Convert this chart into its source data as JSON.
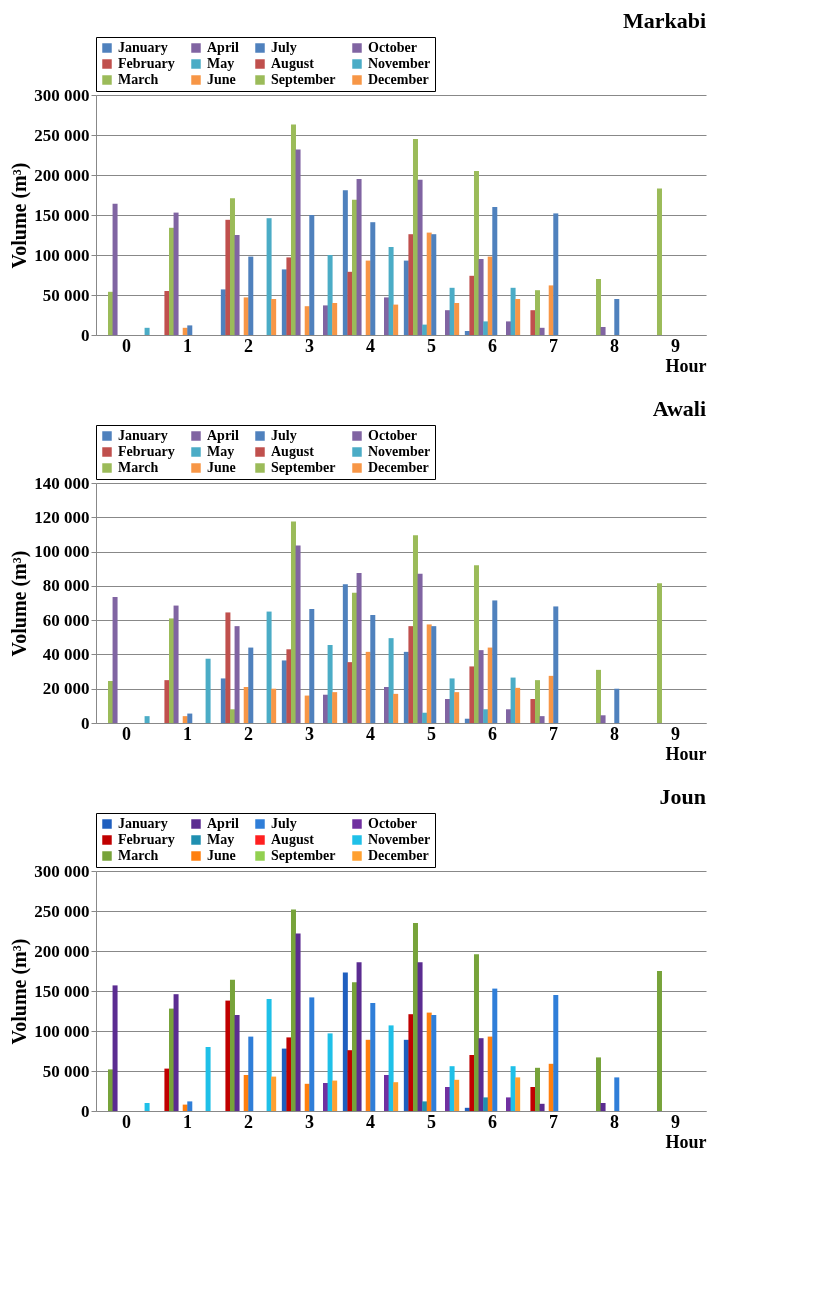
{
  "chart_data": [
    {
      "type": "bar",
      "title": "Markabi",
      "xlabel": "Hour",
      "ylabel": "Volume (m³)",
      "legend": "top",
      "grid": "y",
      "categories": [
        "0",
        "1",
        "2",
        "3",
        "4",
        "5",
        "6",
        "7",
        "8",
        "9"
      ],
      "ylim": [
        0,
        300000
      ],
      "yticks": [
        {
          "value": 0,
          "label": "0"
        },
        {
          "value": 50000,
          "label": "50 000"
        },
        {
          "value": 100000,
          "label": "100 000"
        },
        {
          "value": 150000,
          "label": "150 000"
        },
        {
          "value": 200000,
          "label": "200 000"
        },
        {
          "value": 250000,
          "label": "250 000"
        },
        {
          "value": 300000,
          "label": "300 000"
        }
      ],
      "series": [
        {
          "name": "January",
          "color": "#4f81bd",
          "values": [
            null,
            null,
            57000,
            82000,
            181000,
            93000,
            5000,
            null,
            null,
            null
          ]
        },
        {
          "name": "February",
          "color": "#c0504d",
          "values": [
            null,
            55000,
            144000,
            97000,
            79000,
            126000,
            74000,
            31000,
            null,
            null
          ]
        },
        {
          "name": "March",
          "color": "#9bbb59",
          "values": [
            54000,
            134000,
            171000,
            263000,
            169000,
            245000,
            205000,
            56000,
            70000,
            183000
          ]
        },
        {
          "name": "April",
          "color": "#8064a2",
          "values": [
            164000,
            153000,
            125000,
            232000,
            195000,
            194000,
            95000,
            9000,
            10000,
            null
          ]
        },
        {
          "name": "May",
          "color": "#4bacc6",
          "values": [
            null,
            null,
            null,
            null,
            null,
            13000,
            17000,
            null,
            null,
            null
          ]
        },
        {
          "name": "June",
          "color": "#f79646",
          "values": [
            null,
            9000,
            47000,
            36000,
            93000,
            128000,
            98000,
            62000,
            null,
            null
          ]
        },
        {
          "name": "July",
          "color": "#4f81bd",
          "values": [
            null,
            12000,
            98000,
            150000,
            141000,
            126000,
            160000,
            152000,
            45000,
            null
          ]
        },
        {
          "name": "August",
          "color": "#c0504d",
          "values": [
            null,
            null,
            null,
            null,
            null,
            null,
            null,
            null,
            null,
            null
          ]
        },
        {
          "name": "September",
          "color": "#9bbb59",
          "values": [
            null,
            null,
            null,
            null,
            null,
            null,
            null,
            null,
            null,
            null
          ]
        },
        {
          "name": "October",
          "color": "#8064a2",
          "values": [
            null,
            null,
            null,
            37000,
            47000,
            31000,
            17000,
            null,
            null,
            null
          ]
        },
        {
          "name": "November",
          "color": "#4bacc6",
          "values": [
            9000,
            null,
            146000,
            100000,
            110000,
            59000,
            59000,
            null,
            null,
            null
          ]
        },
        {
          "name": "December",
          "color": "#f79646",
          "values": [
            null,
            null,
            45000,
            40000,
            38000,
            40000,
            45000,
            null,
            null,
            null
          ]
        }
      ]
    },
    {
      "type": "bar",
      "title": "Awali",
      "xlabel": "Hour",
      "ylabel": "Volume (m³)",
      "legend": "top",
      "grid": "y",
      "categories": [
        "0",
        "1",
        "2",
        "3",
        "4",
        "5",
        "6",
        "7",
        "8",
        "9"
      ],
      "ylim": [
        0,
        140000
      ],
      "yticks": [
        {
          "value": 0,
          "label": "0"
        },
        {
          "value": 20000,
          "label": "20 000"
        },
        {
          "value": 40000,
          "label": "40 000"
        },
        {
          "value": 60000,
          "label": "60 000"
        },
        {
          "value": 80000,
          "label": "80 000"
        },
        {
          "value": 100000,
          "label": "100 000"
        },
        {
          "value": 120000,
          "label": "120 000"
        },
        {
          "value": 140000,
          "label": "140 000"
        }
      ],
      "series": [
        {
          "name": "January",
          "color": "#4f81bd",
          "values": [
            null,
            null,
            26000,
            36500,
            81000,
            41500,
            2500,
            null,
            null,
            null
          ]
        },
        {
          "name": "February",
          "color": "#c0504d",
          "values": [
            null,
            25000,
            64500,
            43000,
            35500,
            56500,
            33000,
            14000,
            null,
            null
          ]
        },
        {
          "name": "March",
          "color": "#9bbb59",
          "values": [
            24500,
            61000,
            8000,
            117500,
            76000,
            109500,
            92000,
            25000,
            31000,
            81500
          ]
        },
        {
          "name": "April",
          "color": "#8064a2",
          "values": [
            73500,
            68500,
            56500,
            103500,
            87500,
            87000,
            42500,
            4000,
            4500,
            null
          ]
        },
        {
          "name": "May",
          "color": "#4bacc6",
          "values": [
            null,
            null,
            null,
            null,
            null,
            6000,
            8000,
            null,
            null,
            null
          ]
        },
        {
          "name": "June",
          "color": "#f79646",
          "values": [
            null,
            4000,
            21000,
            16000,
            41500,
            57500,
            44000,
            27500,
            null,
            null
          ]
        },
        {
          "name": "July",
          "color": "#4f81bd",
          "values": [
            null,
            5500,
            44000,
            66500,
            63000,
            56500,
            71500,
            68000,
            20000,
            null
          ]
        },
        {
          "name": "August",
          "color": "#c0504d",
          "values": [
            null,
            null,
            null,
            null,
            null,
            null,
            null,
            null,
            null,
            null
          ]
        },
        {
          "name": "September",
          "color": "#9bbb59",
          "values": [
            null,
            null,
            null,
            null,
            null,
            null,
            null,
            null,
            null,
            null
          ]
        },
        {
          "name": "October",
          "color": "#8064a2",
          "values": [
            null,
            null,
            null,
            16500,
            21000,
            14000,
            8000,
            null,
            null,
            null
          ]
        },
        {
          "name": "November",
          "color": "#4bacc6",
          "values": [
            4000,
            37500,
            65000,
            45500,
            49500,
            26000,
            26500,
            null,
            null,
            null
          ]
        },
        {
          "name": "December",
          "color": "#f79646",
          "values": [
            null,
            null,
            20000,
            18000,
            17000,
            18000,
            20500,
            null,
            null,
            null
          ]
        }
      ]
    },
    {
      "type": "bar",
      "title": "Joun",
      "xlabel": "Hour",
      "ylabel": "Volume (m³)",
      "legend": "top",
      "grid": "y",
      "categories": [
        "0",
        "1",
        "2",
        "3",
        "4",
        "5",
        "6",
        "7",
        "8",
        "9"
      ],
      "ylim": [
        0,
        300000
      ],
      "yticks": [
        {
          "value": 0,
          "label": "0"
        },
        {
          "value": 50000,
          "label": "50 000"
        },
        {
          "value": 100000,
          "label": "100 000"
        },
        {
          "value": 150000,
          "label": "150 000"
        },
        {
          "value": 200000,
          "label": "200 000"
        },
        {
          "value": 250000,
          "label": "250 000"
        },
        {
          "value": 300000,
          "label": "300 000"
        }
      ],
      "series": [
        {
          "name": "January",
          "color": "#1f5fbf",
          "values": [
            null,
            null,
            null,
            78000,
            173000,
            89000,
            4000,
            null,
            null,
            null
          ]
        },
        {
          "name": "February",
          "color": "#c00000",
          "values": [
            null,
            53000,
            138000,
            92000,
            76000,
            121000,
            70000,
            30000,
            null,
            null
          ]
        },
        {
          "name": "March",
          "color": "#77a33a",
          "values": [
            52000,
            128000,
            164000,
            252000,
            161000,
            235000,
            196000,
            54000,
            67000,
            175000
          ]
        },
        {
          "name": "April",
          "color": "#5b2c91",
          "values": [
            157000,
            146000,
            120000,
            222000,
            186000,
            186000,
            91000,
            9000,
            10000,
            null
          ]
        },
        {
          "name": "May",
          "color": "#1f8fb0",
          "values": [
            null,
            null,
            null,
            null,
            null,
            12000,
            17000,
            null,
            null,
            null
          ]
        },
        {
          "name": "June",
          "color": "#ff7f0e",
          "values": [
            null,
            8000,
            45000,
            34000,
            89000,
            123000,
            93000,
            59000,
            null,
            null
          ]
        },
        {
          "name": "July",
          "color": "#2f7ed8",
          "values": [
            null,
            12000,
            93000,
            142000,
            135000,
            120000,
            153000,
            145000,
            42000,
            null
          ]
        },
        {
          "name": "August",
          "color": "#ff2020",
          "values": [
            null,
            null,
            null,
            null,
            null,
            null,
            null,
            null,
            null,
            null
          ]
        },
        {
          "name": "September",
          "color": "#92d050",
          "values": [
            null,
            null,
            null,
            null,
            null,
            null,
            null,
            null,
            null,
            null
          ]
        },
        {
          "name": "October",
          "color": "#7030a0",
          "values": [
            null,
            null,
            null,
            35000,
            45000,
            30000,
            17000,
            null,
            null,
            null
          ]
        },
        {
          "name": "November",
          "color": "#1fc0e8",
          "values": [
            10000,
            80000,
            140000,
            97000,
            107000,
            56000,
            56000,
            null,
            null,
            null
          ]
        },
        {
          "name": "December",
          "color": "#ffa030",
          "values": [
            null,
            null,
            43000,
            38000,
            36000,
            39000,
            42000,
            null,
            null,
            null
          ]
        }
      ]
    }
  ]
}
